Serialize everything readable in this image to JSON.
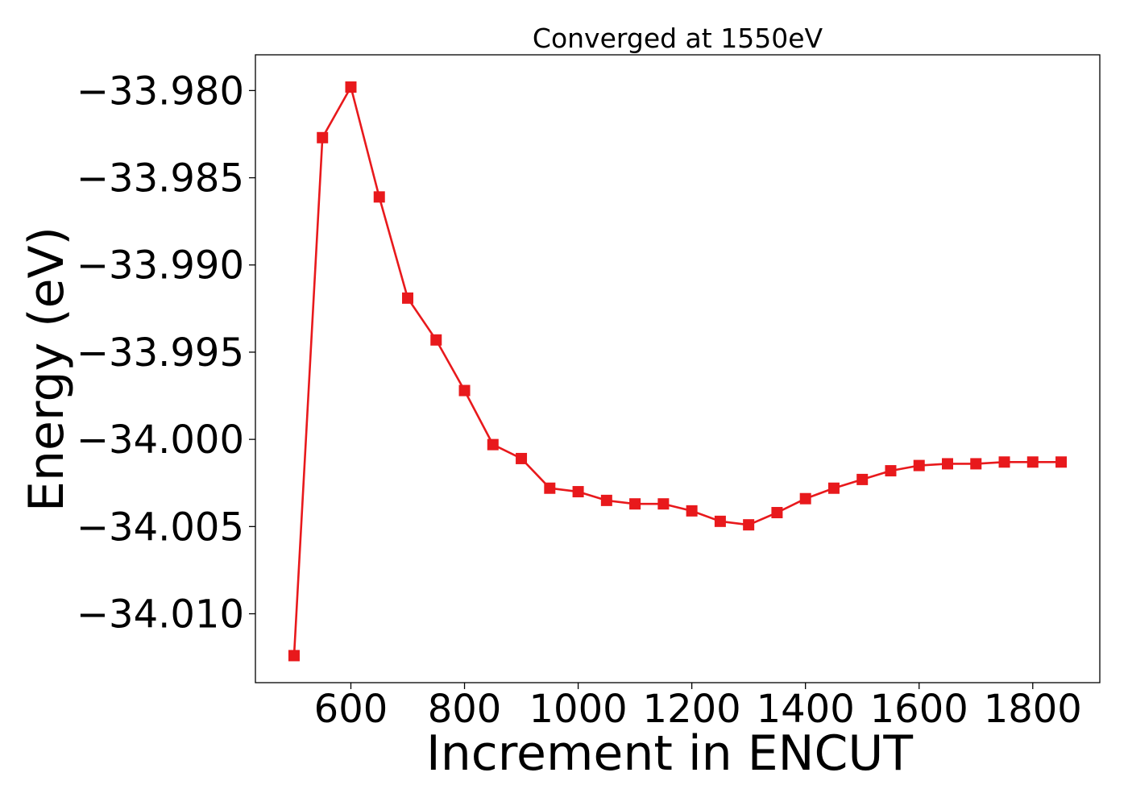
{
  "chart_data": {
    "type": "line",
    "title": "Converged at 1550eV",
    "xlabel": "Increment in ENCUT",
    "ylabel": "Energy (eV)",
    "xlim": [
      432,
      1918
    ],
    "ylim": [
      -34.01395,
      -33.97795
    ],
    "x_ticks": [
      600,
      800,
      1000,
      1200,
      1400,
      1600,
      1800
    ],
    "x_tick_labels": [
      "600",
      "800",
      "1000",
      "1200",
      "1400",
      "1600",
      "1800"
    ],
    "y_ticks": [
      -33.98,
      -33.985,
      -33.99,
      -33.995,
      -34.0,
      -34.005,
      -34.01
    ],
    "y_tick_labels": [
      "−33.980",
      "−33.985",
      "−33.990",
      "−33.995",
      "−34.000",
      "−34.005",
      "−34.010"
    ],
    "grid": false,
    "series": [
      {
        "color": "#e8191c",
        "marker": "square",
        "x": [
          500,
          550,
          600,
          650,
          700,
          750,
          800,
          850,
          900,
          950,
          1000,
          1050,
          1100,
          1150,
          1200,
          1250,
          1300,
          1350,
          1400,
          1450,
          1500,
          1550,
          1600,
          1650,
          1700,
          1750,
          1800,
          1850
        ],
        "y": [
          -34.0124,
          -33.9827,
          -33.9798,
          -33.9861,
          -33.9919,
          -33.9943,
          -33.9972,
          -34.0003,
          -34.0011,
          -34.0028,
          -34.003,
          -34.0035,
          -34.0037,
          -34.0037,
          -34.0041,
          -34.0047,
          -34.0049,
          -34.0042,
          -34.0034,
          -34.0028,
          -34.0023,
          -34.0018,
          -34.0015,
          -34.0014,
          -34.0014,
          -34.0013,
          -34.0013,
          -34.0013
        ]
      }
    ]
  }
}
